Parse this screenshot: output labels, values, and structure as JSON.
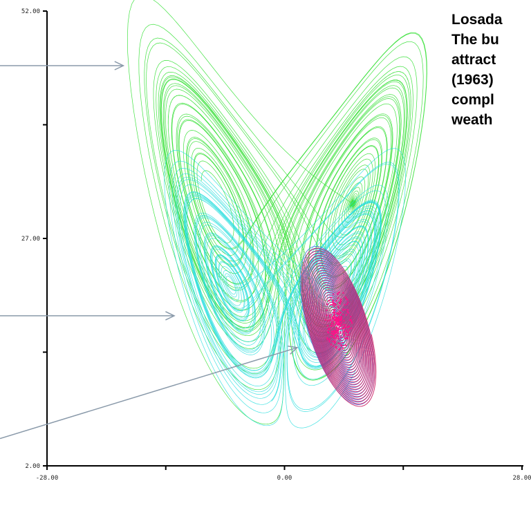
{
  "chart_data": {
    "type": "scatter",
    "title": "",
    "xlabel": "",
    "ylabel": "",
    "xlim": [
      -28,
      28
    ],
    "ylim": [
      2,
      52
    ],
    "x_tick_labels": [
      "-28.00",
      "0.00",
      "28.00"
    ],
    "y_tick_labels": [
      "52.00",
      "27.00",
      "2.00"
    ],
    "grid": false,
    "legend": "none",
    "series": [
      {
        "color": "#22dd22",
        "shape": "butterfly double-lobe attractor, two wings from lower center to top-left and top-right",
        "x": [
          -18.5,
          -18,
          -14.5,
          -5,
          0,
          5,
          14,
          18.5,
          18.2,
          5,
          0,
          -5,
          -18.2
        ],
        "y": [
          47.5,
          50.5,
          51,
          37,
          29,
          37,
          50.8,
          51.5,
          47.5,
          32,
          27,
          32,
          47.5
        ]
      },
      {
        "color": "#22dddd",
        "shape": "wide lower double-lobe, cusp near x=0, y=2",
        "x": [
          -13,
          -12,
          -8,
          -3,
          0,
          3,
          8,
          11,
          11.5,
          8,
          0,
          -8
        ],
        "y": [
          28,
          33,
          35,
          30,
          3,
          30,
          33,
          29,
          14,
          10,
          3,
          10
        ]
      },
      {
        "color": "#cc2266",
        "shape": "single-wing spiral centered near x=6, y=18",
        "x": [
          1.5,
          6,
          10,
          10.5,
          6,
          2
        ],
        "y": [
          13,
          24,
          20,
          12,
          8,
          13
        ]
      }
    ],
    "arrows": [
      {
        "from": [
          -28,
          46
        ],
        "to": [
          -19,
          46
        ]
      },
      {
        "from": [
          -28,
          18.5
        ],
        "to": [
          -13,
          18.5
        ]
      },
      {
        "from": [
          -28,
          5
        ],
        "to": [
          1.5,
          15
        ]
      }
    ]
  },
  "caption": {
    "lines": [
      "Losada",
      "The bu",
      "attract",
      "(1963)",
      "compl",
      "weath"
    ]
  }
}
